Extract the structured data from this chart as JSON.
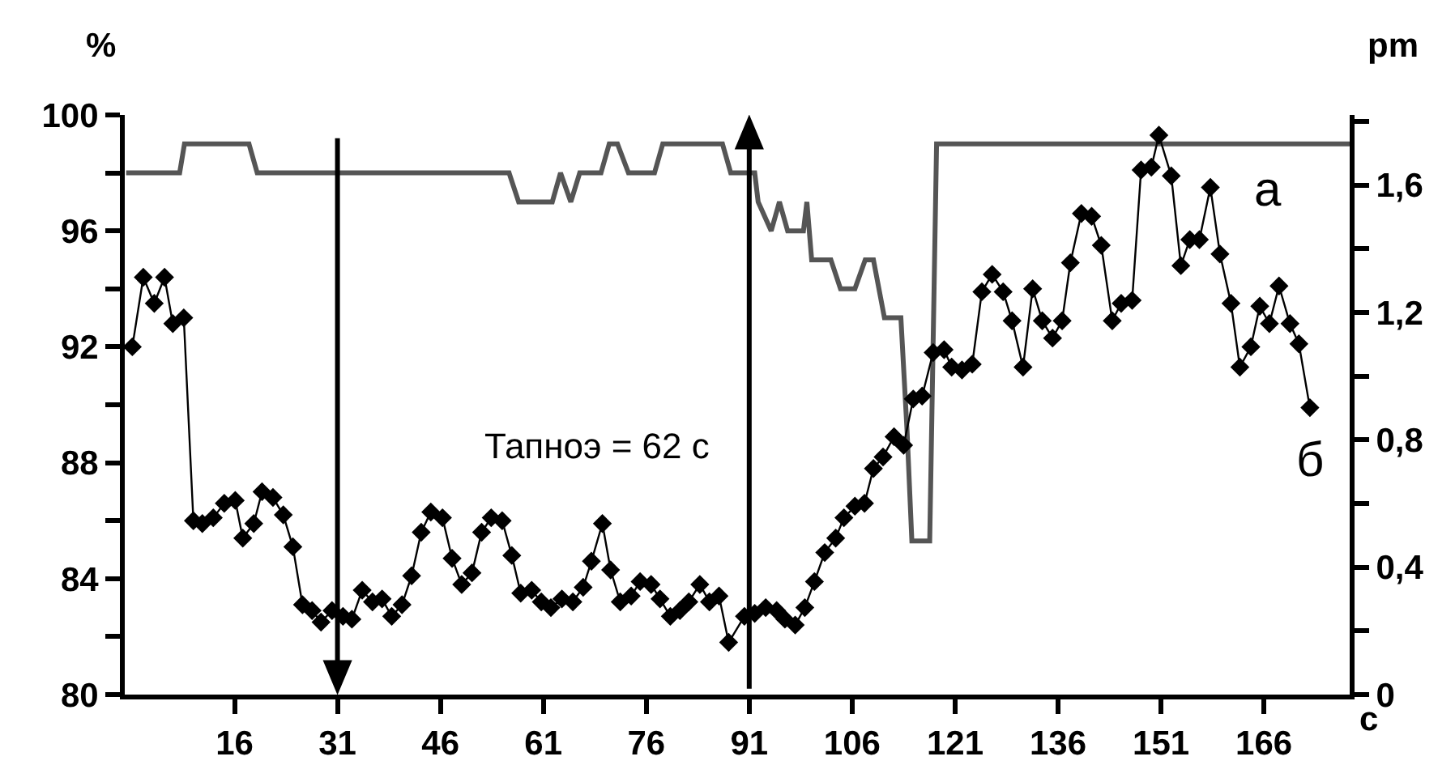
{
  "chart_data": {
    "type": "line",
    "xlabel": "c",
    "ylabel": "%",
    "y2label": "pm",
    "xlim": [
      0,
      178.5
    ],
    "xticks": [
      16,
      31,
      46,
      61,
      76,
      91,
      106,
      121,
      136,
      151,
      166
    ],
    "ylim": [
      80,
      100
    ],
    "yticks": [
      80,
      {
        "value": 82,
        "label": null
      },
      84,
      {
        "value": 86,
        "label": null
      },
      88,
      {
        "value": 90,
        "label": null
      },
      92,
      {
        "value": 94,
        "label": null
      },
      96,
      {
        "value": 98,
        "label": null
      },
      100
    ],
    "y2lim": [
      0,
      1.82
    ],
    "y2ticks": [
      0,
      {
        "value": 0.2,
        "label": null
      },
      {
        "value": 0.4,
        "label": "0,4"
      },
      {
        "value": 0.6,
        "label": null
      },
      {
        "value": 0.8,
        "label": "0,8"
      },
      {
        "value": 1.0,
        "label": null
      },
      {
        "value": 1.2,
        "label": "1,2"
      },
      {
        "value": 1.4,
        "label": null
      },
      {
        "value": 1.6,
        "label": "1,6"
      },
      {
        "value": 1.8,
        "label": null
      }
    ],
    "legend": false,
    "series": [
      {
        "name": "а",
        "color": "#555555",
        "marker": "none",
        "line_style": "solid",
        "x": [
          0.2,
          8.0,
          8.7,
          18.1,
          19.3,
          56.0,
          57.4,
          62.3,
          63.5,
          65.0,
          66.3,
          69.4,
          70.6,
          71.8,
          73.4,
          77.2,
          78.4,
          87.1,
          88.3,
          91.8,
          92.3,
          94.2,
          95.4,
          96.6,
          98.9,
          99.4,
          100.1,
          102.9,
          104.3,
          106.4,
          107.9,
          109.1,
          110.7,
          113.1,
          114.0,
          114.7,
          117.3,
          118.3,
          178.5
        ],
        "values": [
          98,
          98,
          99,
          99,
          98,
          98,
          97,
          97,
          98,
          97,
          98,
          98,
          99,
          99,
          98,
          98,
          99,
          99,
          98,
          98,
          97,
          96,
          97,
          96,
          96,
          97,
          95,
          95,
          94,
          94,
          95,
          95,
          93,
          93,
          89.1,
          85.3,
          85.3,
          99,
          99
        ]
      },
      {
        "name": "б",
        "color": "#000000",
        "marker": "diamond",
        "line_style": "solid",
        "x": [
          1.1,
          2.7,
          4.3,
          5.8,
          7.0,
          8.6,
          10.0,
          11.3,
          12.9,
          14.5,
          16.1,
          17.2,
          18.8,
          20.0,
          21.6,
          23.1,
          24.5,
          25.9,
          27.3,
          28.6,
          30.2,
          31.8,
          33.1,
          34.6,
          36.1,
          37.5,
          38.9,
          40.4,
          41.8,
          43.2,
          44.6,
          46.3,
          47.7,
          49.1,
          50.6,
          52.0,
          53.4,
          55.0,
          56.4,
          57.7,
          59.3,
          60.7,
          62.1,
          63.7,
          65.3,
          66.8,
          68.0,
          69.6,
          70.8,
          72.2,
          73.8,
          75.1,
          76.7,
          78.0,
          79.5,
          80.9,
          82.2,
          83.8,
          85.2,
          86.6,
          88.0,
          90.3,
          91.8,
          93.4,
          95.0,
          96.2,
          97.7,
          99.1,
          100.5,
          102.0,
          103.6,
          104.8,
          106.4,
          107.8,
          109.1,
          110.5,
          112.1,
          113.5,
          114.9,
          116.2,
          117.8,
          119.4,
          120.5,
          122.0,
          123.5,
          124.9,
          126.4,
          128.0,
          129.3,
          130.9,
          132.3,
          133.7,
          135.2,
          136.6,
          137.8,
          139.4,
          140.9,
          142.3,
          143.9,
          145.2,
          146.8,
          148.1,
          149.6,
          150.7,
          152.5,
          153.9,
          155.2,
          156.6,
          158.2,
          159.6,
          161.2,
          162.5,
          164.1,
          165.4,
          166.8,
          168.2,
          169.8,
          171.1,
          172.7
        ],
        "values": [
          92.0,
          94.4,
          93.5,
          94.4,
          92.8,
          93.0,
          86.0,
          85.9,
          86.1,
          86.6,
          86.7,
          85.4,
          85.9,
          87.0,
          86.8,
          86.2,
          85.1,
          83.1,
          82.9,
          82.5,
          82.9,
          82.7,
          82.6,
          83.6,
          83.2,
          83.3,
          82.7,
          83.1,
          84.1,
          85.6,
          86.3,
          86.1,
          84.7,
          83.8,
          84.2,
          85.6,
          86.1,
          86.0,
          84.8,
          83.5,
          83.6,
          83.2,
          83.0,
          83.3,
          83.2,
          83.7,
          84.6,
          85.9,
          84.3,
          83.2,
          83.4,
          83.9,
          83.8,
          83.3,
          82.7,
          82.9,
          83.2,
          83.8,
          83.2,
          83.4,
          81.8,
          82.7,
          82.8,
          83.0,
          82.9,
          82.6,
          82.4,
          83.0,
          83.9,
          84.9,
          85.4,
          86.1,
          86.5,
          86.6,
          87.8,
          88.2,
          88.9,
          88.6,
          90.2,
          90.3,
          91.8,
          91.9,
          91.3,
          91.2,
          91.4,
          93.9,
          94.5,
          93.9,
          92.9,
          91.3,
          94.0,
          92.9,
          92.3,
          92.9,
          94.9,
          96.6,
          96.5,
          95.5,
          92.9,
          93.5,
          93.6,
          98.1,
          98.2,
          99.3,
          97.9,
          94.8,
          95.7,
          95.7,
          97.5,
          95.2,
          93.5,
          91.3,
          92.0,
          93.4,
          92.8,
          94.1,
          92.8,
          92.1,
          89.9
        ]
      }
    ],
    "ref_lines": [
      {
        "axis": "x",
        "value": 31,
        "line_style": "solid",
        "color": "#000000"
      },
      {
        "axis": "x",
        "value": 91,
        "line_style": "solid",
        "color": "#000000"
      }
    ],
    "annotations": [
      "Тапноэ = 62 с"
    ]
  }
}
